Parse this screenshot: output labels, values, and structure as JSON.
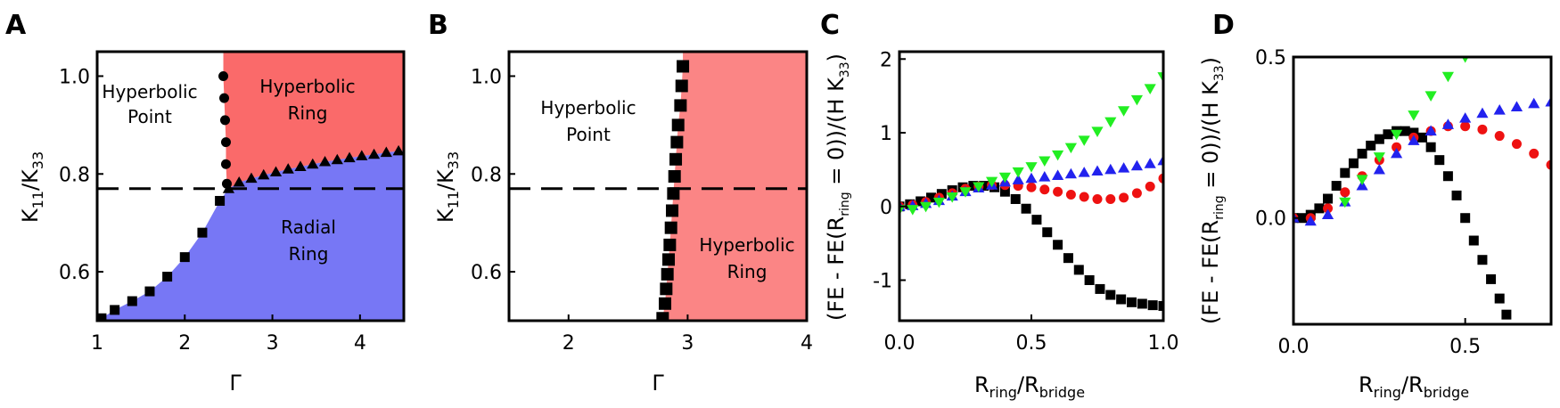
{
  "colors": {
    "radial_ring": "#7777f5",
    "hyperbolic_ring_A": "#fa6a6a",
    "hyperbolic_ring_B": "#fb8585",
    "black": "#000000",
    "red": "#ee1111",
    "blue": "#2222ee",
    "green": "#22ee22"
  },
  "panels": {
    "A": {
      "letter": "A",
      "xlabel": "Γ",
      "ylabel_main": "K",
      "ylabel_sub1": "11",
      "ylabel_sep": "/K",
      "ylabel_sub2": "33",
      "xticks": [
        "1",
        "2",
        "3",
        "4"
      ],
      "yticks": [
        "0.6",
        "0.8",
        "1.0"
      ],
      "labels": {
        "hyperbolic_point_1": "Hyperbolic",
        "hyperbolic_point_2": "Point",
        "hyperbolic_ring_1": "Hyperbolic",
        "hyperbolic_ring_2": "Ring",
        "radial_ring_1": "Radial",
        "radial_ring_2": "Ring"
      }
    },
    "B": {
      "letter": "B",
      "xlabel": "Γ",
      "ylabel_main": "K",
      "ylabel_sub1": "11",
      "ylabel_sep": "/K",
      "ylabel_sub2": "33",
      "xticks": [
        "2",
        "3",
        "4"
      ],
      "yticks": [
        "0.6",
        "0.8",
        "1.0"
      ],
      "labels": {
        "hyperbolic_point_1": "Hyperbolic",
        "hyperbolic_point_2": "Point",
        "hyperbolic_ring_1": "Hyperbolic",
        "hyperbolic_ring_2": "Ring"
      }
    },
    "C": {
      "letter": "C",
      "xlabel_main": "R",
      "xlabel_sub1": "ring",
      "xlabel_sep": "/R",
      "xlabel_sub2": "bridge",
      "ylabel_a": "(FE - FE(R",
      "ylabel_sub": "ring",
      "ylabel_b": " = 0))/(H K",
      "ylabel_sub2": "33",
      "ylabel_c": ")",
      "xticks": [
        "0.0",
        "0.5",
        "1.0"
      ],
      "yticks": [
        "-1",
        "0",
        "1",
        "2"
      ]
    },
    "D": {
      "letter": "D",
      "xlabel_main": "R",
      "xlabel_sub1": "ring",
      "xlabel_sep": "/R",
      "xlabel_sub2": "bridge",
      "ylabel_a": "(FE - FE(R",
      "ylabel_sub": "ring",
      "ylabel_b": " = 0))/(H K",
      "ylabel_sub2": "33",
      "ylabel_c": ")",
      "xticks": [
        "0.0",
        "0.5"
      ],
      "yticks": [
        "0.0",
        "0.5"
      ]
    }
  },
  "chart_data": [
    {
      "panel": "A",
      "type": "scatter",
      "xlabel": "Γ",
      "ylabel": "K11/K33",
      "xlim": [
        1.0,
        4.5
      ],
      "ylim": [
        0.5,
        1.05
      ],
      "dashed_line_y": 0.77,
      "regions": [
        {
          "name": "Hyperbolic Point",
          "fill": "white"
        },
        {
          "name": "Hyperbolic Ring",
          "fill": "#fa6a6a"
        },
        {
          "name": "Radial Ring",
          "fill": "#7777f5"
        }
      ],
      "series": [
        {
          "marker": "square",
          "color": "#000000",
          "x": [
            1.05,
            1.2,
            1.4,
            1.6,
            1.8,
            2.0,
            2.2,
            2.4
          ],
          "y": [
            0.505,
            0.522,
            0.54,
            0.56,
            0.59,
            0.63,
            0.68,
            0.745
          ]
        },
        {
          "marker": "circle",
          "color": "#000000",
          "x": [
            2.48,
            2.47,
            2.47,
            2.46,
            2.45,
            2.44
          ],
          "y": [
            0.78,
            0.82,
            0.865,
            0.91,
            0.955,
            1.0
          ]
        },
        {
          "marker": "triangle",
          "color": "#000000",
          "x": [
            2.5,
            2.62,
            2.76,
            2.9,
            3.04,
            3.18,
            3.32,
            3.46,
            3.6,
            3.74,
            3.88,
            4.02,
            4.16,
            4.3,
            4.44
          ],
          "y": [
            0.77,
            0.783,
            0.791,
            0.798,
            0.804,
            0.81,
            0.815,
            0.82,
            0.825,
            0.829,
            0.833,
            0.837,
            0.84,
            0.844,
            0.847
          ]
        }
      ]
    },
    {
      "panel": "B",
      "type": "scatter",
      "xlabel": "Γ",
      "ylabel": "K11/K33",
      "xlim": [
        1.5,
        4.0
      ],
      "ylim": [
        0.5,
        1.05
      ],
      "dashed_line_y": 0.77,
      "regions": [
        {
          "name": "Hyperbolic Point",
          "fill": "white"
        },
        {
          "name": "Hyperbolic Ring",
          "fill": "#fb8585"
        }
      ],
      "series": [
        {
          "marker": "square",
          "color": "#000000",
          "x": [
            2.79,
            2.81,
            2.82,
            2.83,
            2.84,
            2.85,
            2.86,
            2.87,
            2.88,
            2.89,
            2.9,
            2.91,
            2.92,
            2.94,
            2.95,
            2.96
          ],
          "y": [
            0.505,
            0.535,
            0.565,
            0.595,
            0.625,
            0.655,
            0.69,
            0.725,
            0.76,
            0.795,
            0.83,
            0.865,
            0.9,
            0.94,
            0.98,
            1.02
          ]
        }
      ]
    },
    {
      "panel": "C",
      "type": "scatter",
      "xlabel": "Rring/Rbridge",
      "ylabel": "(FE - FE(Rring = 0))/(H K33)",
      "xlim": [
        0.0,
        1.0
      ],
      "ylim": [
        -1.55,
        2.1
      ],
      "series": [
        {
          "marker": "square",
          "color": "#000000",
          "x": [
            0.0,
            0.04,
            0.08,
            0.12,
            0.16,
            0.2,
            0.24,
            0.28,
            0.32,
            0.36,
            0.4,
            0.44,
            0.48,
            0.52,
            0.56,
            0.6,
            0.64,
            0.68,
            0.72,
            0.76,
            0.8,
            0.84,
            0.88,
            0.92,
            0.96,
            1.0
          ],
          "y": [
            0.0,
            0.03,
            0.07,
            0.12,
            0.17,
            0.22,
            0.26,
            0.28,
            0.28,
            0.26,
            0.2,
            0.1,
            -0.03,
            -0.18,
            -0.35,
            -0.52,
            -0.7,
            -0.86,
            -1.0,
            -1.12,
            -1.2,
            -1.26,
            -1.3,
            -1.32,
            -1.34,
            -1.35
          ]
        },
        {
          "marker": "circle",
          "color": "#ee1111",
          "x": [
            0.0,
            0.05,
            0.1,
            0.15,
            0.2,
            0.25,
            0.3,
            0.35,
            0.4,
            0.45,
            0.5,
            0.55,
            0.6,
            0.65,
            0.7,
            0.75,
            0.8,
            0.85,
            0.9,
            0.95,
            1.0
          ],
          "y": [
            0.0,
            0.02,
            0.06,
            0.12,
            0.18,
            0.24,
            0.27,
            0.29,
            0.29,
            0.28,
            0.26,
            0.23,
            0.2,
            0.16,
            0.13,
            0.1,
            0.1,
            0.12,
            0.18,
            0.27,
            0.38
          ]
        },
        {
          "marker": "triangle-up",
          "color": "#2222ee",
          "x": [
            0.0,
            0.05,
            0.1,
            0.15,
            0.2,
            0.25,
            0.3,
            0.35,
            0.4,
            0.45,
            0.5,
            0.55,
            0.6,
            0.65,
            0.7,
            0.75,
            0.8,
            0.85,
            0.9,
            0.95,
            1.0
          ],
          "y": [
            0.0,
            0.01,
            0.04,
            0.08,
            0.14,
            0.2,
            0.25,
            0.29,
            0.33,
            0.36,
            0.38,
            0.4,
            0.42,
            0.44,
            0.46,
            0.48,
            0.5,
            0.52,
            0.55,
            0.58,
            0.62
          ]
        },
        {
          "marker": "triangle-down",
          "color": "#22ee22",
          "x": [
            0.0,
            0.05,
            0.1,
            0.15,
            0.2,
            0.25,
            0.3,
            0.35,
            0.4,
            0.45,
            0.5,
            0.55,
            0.6,
            0.65,
            0.7,
            0.75,
            0.8,
            0.85,
            0.9,
            0.95,
            1.0
          ],
          "y": [
            -0.04,
            -0.04,
            0.0,
            0.06,
            0.13,
            0.2,
            0.27,
            0.34,
            0.4,
            0.47,
            0.54,
            0.62,
            0.7,
            0.8,
            0.9,
            1.02,
            1.15,
            1.3,
            1.45,
            1.6,
            1.76
          ]
        }
      ]
    },
    {
      "panel": "D",
      "type": "scatter",
      "xlabel": "Rring/Rbridge",
      "ylabel": "(FE - FE(Rring = 0))/(H K33)",
      "xlim": [
        0.0,
        0.75
      ],
      "ylim": [
        -0.33,
        0.5
      ],
      "series": [
        {
          "marker": "square",
          "color": "#000000",
          "x": [
            0.0,
            0.025,
            0.05,
            0.075,
            0.1,
            0.125,
            0.15,
            0.175,
            0.2,
            0.225,
            0.25,
            0.275,
            0.3,
            0.325,
            0.35,
            0.375,
            0.4,
            0.425,
            0.45,
            0.475,
            0.5,
            0.525,
            0.55,
            0.575,
            0.6,
            0.62
          ],
          "y": [
            0.0,
            0.0,
            0.01,
            0.03,
            0.06,
            0.1,
            0.14,
            0.17,
            0.2,
            0.225,
            0.245,
            0.26,
            0.27,
            0.27,
            0.265,
            0.25,
            0.22,
            0.18,
            0.13,
            0.07,
            0.0,
            -0.07,
            -0.13,
            -0.19,
            -0.25,
            -0.3
          ]
        },
        {
          "marker": "circle",
          "color": "#ee1111",
          "x": [
            0.0,
            0.05,
            0.1,
            0.15,
            0.2,
            0.25,
            0.3,
            0.35,
            0.4,
            0.45,
            0.5,
            0.55,
            0.6,
            0.65,
            0.7,
            0.75
          ],
          "y": [
            0.0,
            0.0,
            0.03,
            0.08,
            0.13,
            0.18,
            0.22,
            0.25,
            0.27,
            0.285,
            0.285,
            0.275,
            0.255,
            0.23,
            0.2,
            0.165
          ]
        },
        {
          "marker": "triangle-up",
          "color": "#2222ee",
          "x": [
            0.0,
            0.05,
            0.1,
            0.15,
            0.2,
            0.25,
            0.3,
            0.35,
            0.4,
            0.45,
            0.5,
            0.55,
            0.6,
            0.65,
            0.7,
            0.75
          ],
          "y": [
            0.0,
            -0.01,
            0.01,
            0.05,
            0.1,
            0.15,
            0.2,
            0.24,
            0.27,
            0.29,
            0.31,
            0.325,
            0.335,
            0.345,
            0.355,
            0.36
          ]
        },
        {
          "marker": "triangle-down",
          "color": "#22ee22",
          "x": [
            0.15,
            0.2,
            0.25,
            0.3,
            0.35,
            0.4,
            0.45,
            0.5
          ],
          "y": [
            0.05,
            0.12,
            0.19,
            0.26,
            0.32,
            0.38,
            0.44,
            0.5
          ]
        }
      ]
    }
  ]
}
